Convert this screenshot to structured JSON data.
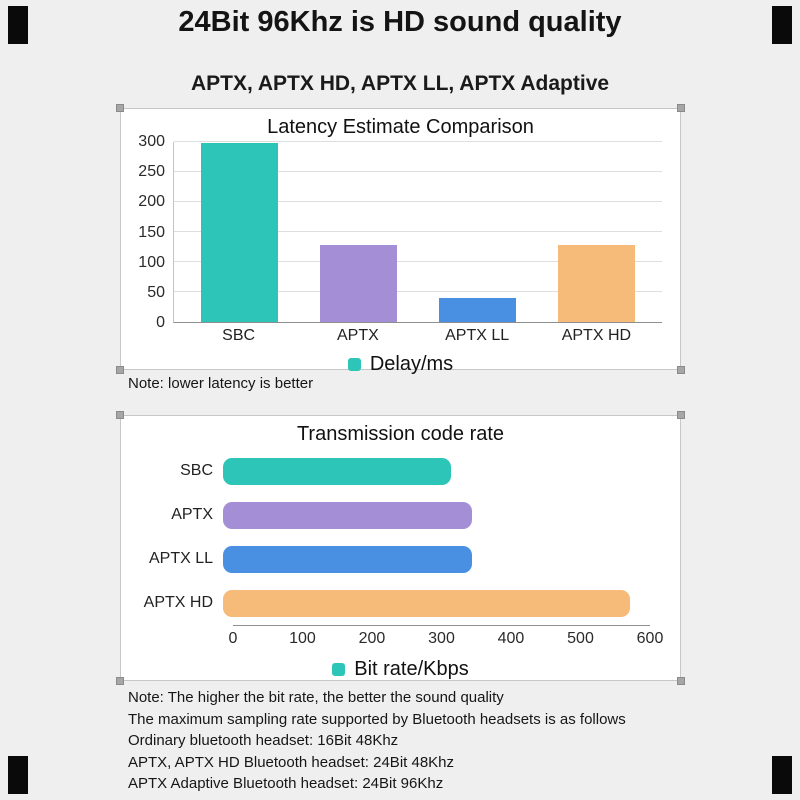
{
  "header": {
    "title": "24Bit 96Khz is HD sound quality",
    "subtitle": "APTX, APTX HD, APTX LL, APTX Adaptive"
  },
  "chart_data": [
    {
      "type": "bar",
      "orientation": "vertical",
      "title": "Latency Estimate Comparison",
      "categories": [
        "SBC",
        "APTX",
        "APTX LL",
        "APTX HD"
      ],
      "values": [
        298,
        128,
        40,
        128
      ],
      "bar_colors": [
        "#2cc5b7",
        "#a48fd6",
        "#4a90e2",
        "#f6ba79"
      ],
      "legend": "Delay/ms",
      "legend_color": "#2cc5b7",
      "legend_position": "bottom",
      "ylabel": "",
      "xlabel": "",
      "ylim": [
        0,
        300
      ],
      "yticks": [
        0,
        50,
        100,
        150,
        200,
        250,
        300
      ],
      "grid": true
    },
    {
      "type": "bar",
      "orientation": "horizontal",
      "title": "Transmission code rate",
      "categories": [
        "SBC",
        "APTX",
        "APTX LL",
        "APTX HD"
      ],
      "values": [
        320,
        350,
        350,
        572
      ],
      "bar_colors": [
        "#2cc5b7",
        "#a48fd6",
        "#4a90e2",
        "#f6ba79"
      ],
      "legend": "Bit rate/Kbps",
      "legend_color": "#2cc5b7",
      "legend_position": "bottom",
      "ylabel": "",
      "xlabel": "",
      "xlim": [
        0,
        600
      ],
      "xticks": [
        0,
        100,
        200,
        300,
        400,
        500,
        600
      ],
      "grid": false
    }
  ],
  "notes": {
    "latency": "Note: lower latency is better",
    "bitrate": [
      "Note: The higher the bit rate, the better the sound quality",
      "The maximum sampling rate supported by Bluetooth headsets is as follows",
      "Ordinary bluetooth headset: 16Bit 48Khz",
      "APTX, APTX HD Bluetooth headset: 24Bit 48Khz",
      "APTX Adaptive Bluetooth headset: 24Bit 96Khz"
    ]
  },
  "colors": {
    "background": "#efefef",
    "panel_background": "#ffffff",
    "teal": "#2cc5b7",
    "purple": "#a48fd6",
    "blue": "#4a90e2",
    "orange": "#f6ba79",
    "axis": "#8f8f8f",
    "gridline": "#dedede"
  }
}
